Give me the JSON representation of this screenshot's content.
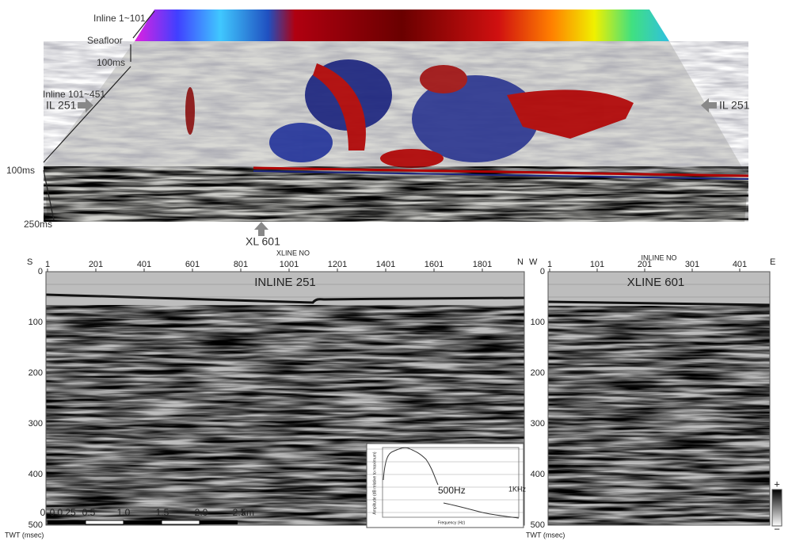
{
  "block_view": {
    "labels": {
      "inline_range_top": "Inline 1~101",
      "seafloor": "Seafloor",
      "depth_top": "100ms",
      "inline_range_side": "Inline 101~451",
      "il_left": "IL 251",
      "il_right": "IL 251",
      "depth_left": "100ms",
      "depth_bottom": "250ms",
      "xl": "XL 601"
    }
  },
  "inline_section": {
    "title": "INLINE 251",
    "axis_title": "XLINE NO",
    "left_dir": "S",
    "right_dir": "N",
    "y_axis_title": "TWT (msec)",
    "xticks": [
      "1",
      "201",
      "401",
      "601",
      "801",
      "1001",
      "1201",
      "1401",
      "1601",
      "1801"
    ],
    "yticks": [
      "0",
      "100",
      "200",
      "300",
      "400",
      "500"
    ],
    "scale_bar": [
      "0",
      "0",
      "0.25",
      "0.5",
      "1.0",
      "1.5",
      "2.0",
      "2.5",
      "km"
    ],
    "spectrum": {
      "low_label": "500Hz",
      "high_label": "1KHz",
      "x_title": "Frequency (Hz)",
      "y_title": "Amplitude (dB relative to maximum)"
    }
  },
  "xline_section": {
    "title": "XLINE 601",
    "axis_title": "INLINE NO",
    "left_dir": "W",
    "right_dir": "E",
    "y_axis_title": "TWT (msec)",
    "xticks": [
      "1",
      "101",
      "201",
      "301",
      "401"
    ],
    "yticks": [
      "0",
      "100",
      "200",
      "300",
      "400",
      "500"
    ],
    "colorbar": {
      "plus": "+",
      "minus": "−"
    }
  }
}
